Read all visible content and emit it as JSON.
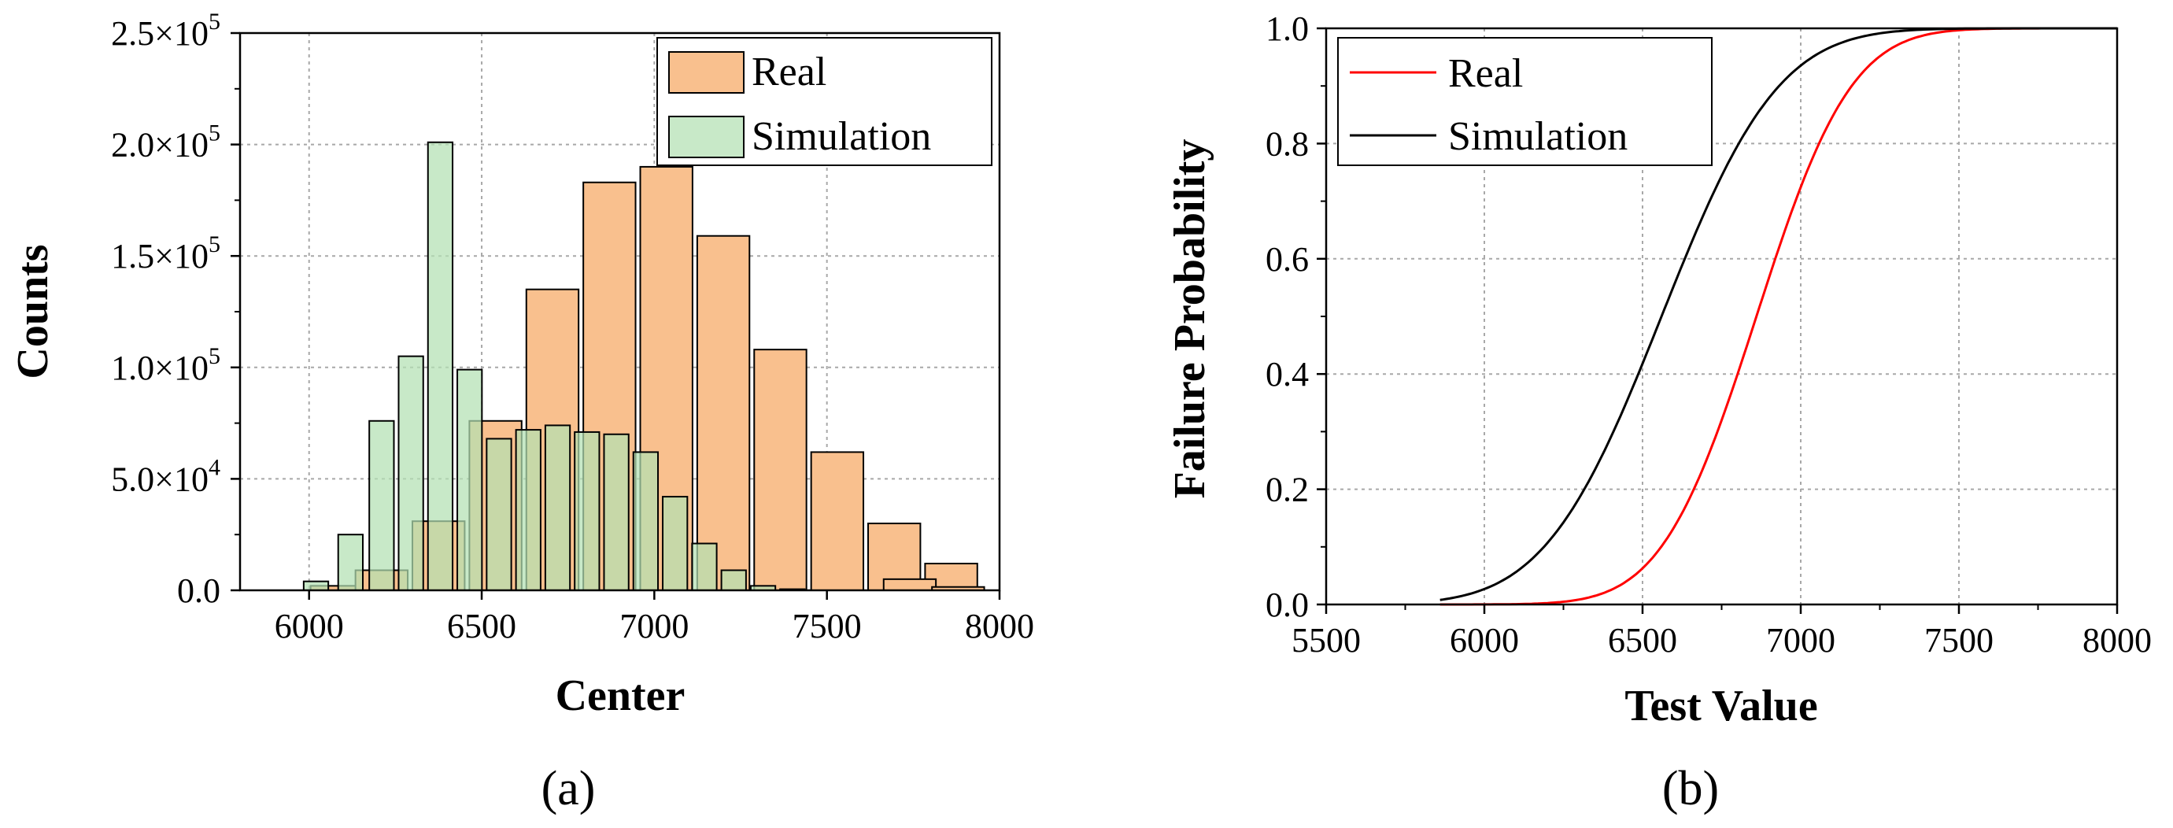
{
  "chart_data": [
    {
      "type": "bar",
      "panel": "(a)",
      "title": "",
      "xlabel": "Center",
      "ylabel": "Counts",
      "xlim": [
        5800,
        8000
      ],
      "ylim": [
        0,
        250000
      ],
      "xticks": [
        6000,
        6500,
        7000,
        7500,
        8000
      ],
      "yticks": [
        {
          "value": 0,
          "label": "0.0"
        },
        {
          "value": 50000,
          "label": "5.0×10",
          "exp": "4"
        },
        {
          "value": 100000,
          "label": "1.0×10",
          "exp": "5"
        },
        {
          "value": 150000,
          "label": "1.5×10",
          "exp": "5"
        },
        {
          "value": 200000,
          "label": "2.0×10",
          "exp": "5"
        },
        {
          "value": 250000,
          "label": "2.5×10",
          "exp": "5"
        }
      ],
      "grid": true,
      "legend_position": "top-right",
      "series": [
        {
          "name": "Real",
          "color": "#f9c08e",
          "edge": "#000000",
          "opacity": 1,
          "centers": [
            6080,
            6210,
            6375,
            6540,
            6705,
            6870,
            7035,
            7200,
            7365,
            7530,
            7695,
            7860
          ],
          "values": [
            2000,
            9000,
            31000,
            76000,
            135000,
            183000,
            190000,
            159000,
            108000,
            62000,
            30000,
            12000
          ],
          "bin_width": 165
        },
        {
          "name": "Simulation",
          "color": "#b3e0b3",
          "edge": "#000000",
          "opacity": 0.72,
          "centers": [
            6020,
            6120,
            6210,
            6295,
            6380,
            6465,
            6550,
            6635,
            6720,
            6805,
            6890,
            6975,
            7060,
            7145,
            7230,
            7315,
            7400
          ],
          "values": [
            4000,
            25000,
            76000,
            105000,
            201000,
            99000,
            68000,
            72000,
            74000,
            71000,
            70000,
            62000,
            42000,
            21000,
            9000,
            2000,
            500
          ],
          "bin_width": 85
        }
      ],
      "extra_bars_real": [
        {
          "center": 7740,
          "value": 5000
        },
        {
          "center": 7880,
          "value": 1500
        }
      ]
    },
    {
      "type": "line",
      "panel": "(b)",
      "title": "",
      "xlabel": "Test Value",
      "ylabel": "Failure Probability",
      "xlim": [
        5500,
        8000
      ],
      "ylim": [
        0,
        1.0
      ],
      "xticks": [
        5500,
        6000,
        6500,
        7000,
        7500,
        8000
      ],
      "yticks": [
        "0.0",
        "0.2",
        "0.4",
        "0.6",
        "0.8",
        "1.0"
      ],
      "grid": true,
      "legend_position": "top-left",
      "series": [
        {
          "name": "Real",
          "color": "#ff0000",
          "mu": 6860,
          "sigma": 235,
          "x_start": 5860,
          "x_end": 8000
        },
        {
          "name": "Simulation",
          "color": "#000000",
          "mu": 6560,
          "sigma": 290,
          "x_start": 5860,
          "x_end": 8000
        }
      ]
    }
  ]
}
